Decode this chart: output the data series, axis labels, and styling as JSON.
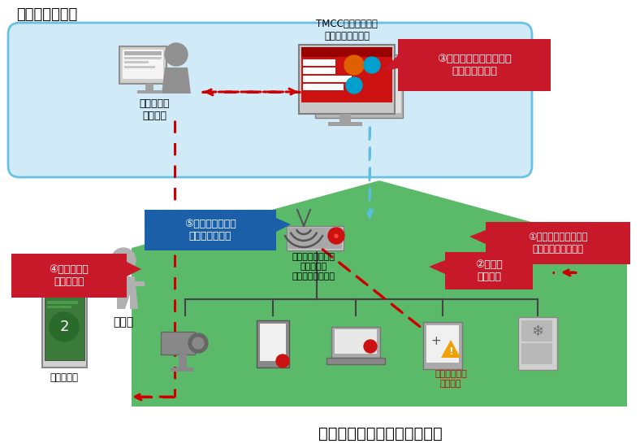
{
  "title_partner": "パートナー企業",
  "title_user_devices": "ユーザ利用しているデバイス",
  "label_technical": "テクニカル\nサポート",
  "label_tmcc": "TMCCマネジメント\nプラットフォーム",
  "label_vuln_vis": "③ユーザの端末の脆弱性\n　状況の可視化",
  "label_update": "⑤脆弱性保護機能\nをアップデート",
  "label_network_device": "セキュリティ機能\nを搭載した\nネットワーク機器",
  "label_vuln_scan": "②脆弱性\nスキャン",
  "label_vuln_connect": "①脆弱性がある機器が\nネットワークに接続",
  "label_user_notify": "④ユーザへの\n通知と助言",
  "label_app": "専用アプリ",
  "label_user": "ユーザ",
  "label_vuln_device": "脆弱性がある\nデバイス",
  "bg_color": "#ffffff",
  "partner_box_fill": "#cce8f8",
  "partner_box_edge": "#5bbce4",
  "house_fill": "#5aba6a",
  "red_box_color": "#c8192b",
  "blue_box_color": "#1a5fa8",
  "red_c": "#cc0000",
  "blue_c": "#5bbce4",
  "gray_icon": "#909090",
  "gray_light": "#c8c8c8",
  "vuln_red": "#cc0000"
}
